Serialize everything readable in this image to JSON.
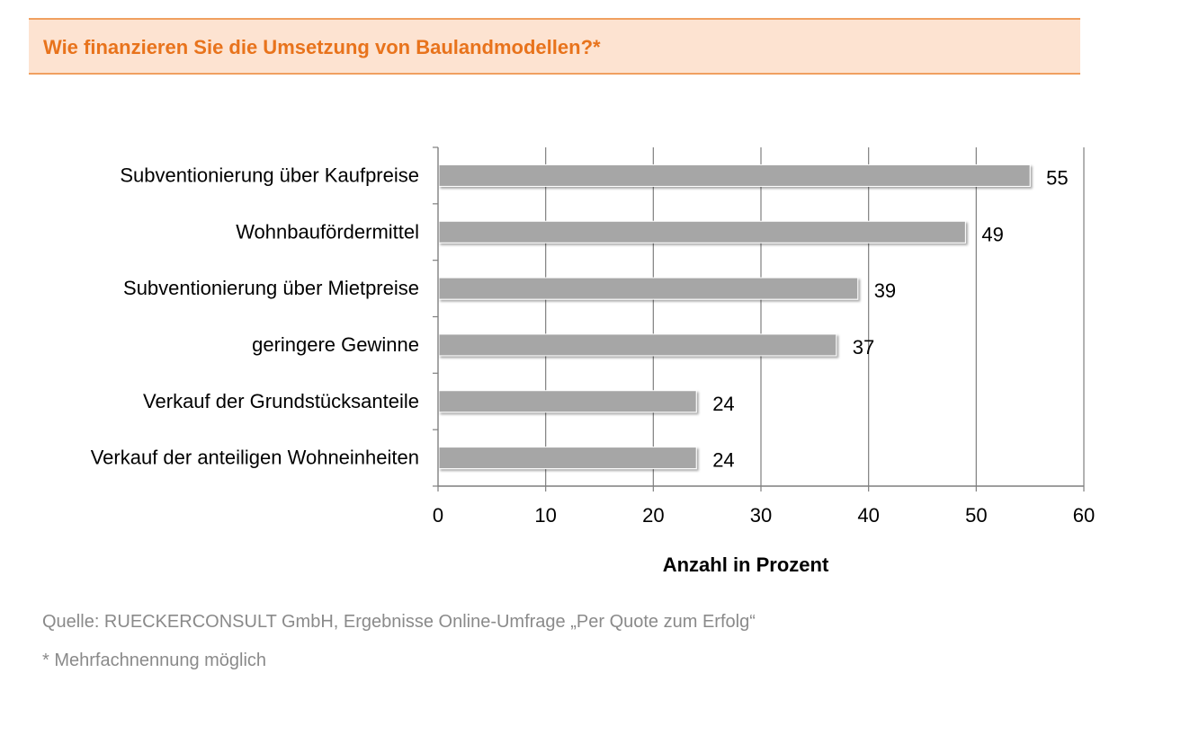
{
  "header": {
    "title": "Wie finanzieren Sie die Umsetzung von Baulandmodellen?*"
  },
  "chart_data": {
    "type": "bar",
    "orientation": "horizontal",
    "categories": [
      "Subventionierung über Kaufpreise",
      "Wohnbaufördermittel",
      "Subventionierung über Mietpreise",
      "geringere Gewinne",
      "Verkauf der Grundstücksanteile",
      "Verkauf der anteiligen Wohneinheiten"
    ],
    "values": [
      55,
      49,
      39,
      37,
      24,
      24
    ],
    "data_labels": [
      "55",
      "49",
      "39",
      "37",
      "24",
      "24"
    ],
    "xlabel": "Anzahl in Prozent",
    "ylabel": "",
    "xlim": [
      0,
      60
    ],
    "x_ticks": [
      0,
      10,
      20,
      30,
      40,
      50,
      60
    ],
    "x_tick_labels": [
      "0",
      "10",
      "20",
      "30",
      "40",
      "50",
      "60"
    ],
    "grid": "vertical",
    "bar_color": "#a6a6a6",
    "grid_color": "#7f7f7f"
  },
  "footer": {
    "source": "Quelle: RUECKERCONSULT GmbH, Ergebnisse Online-Umfrage „Per Quote zum Erfolg“",
    "note": "* Mehrfachnennung möglich"
  }
}
